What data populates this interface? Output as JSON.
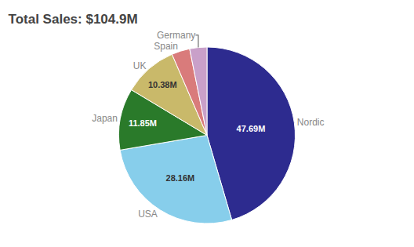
{
  "chart_data": {
    "type": "pie",
    "title": "Total Sales: $104.9M",
    "categories": [
      "Nordic",
      "USA",
      "Japan",
      "UK",
      "Spain",
      "Germany"
    ],
    "values": [
      47.69,
      28.16,
      11.85,
      10.38,
      3.5,
      3.31
    ],
    "value_labels": [
      "47.69M",
      "28.16M",
      "11.85M",
      "10.38M",
      null,
      null
    ],
    "colors": [
      "#2d2b8f",
      "#87ceeb",
      "#2a7a2a",
      "#c9b96a",
      "#d97b7b",
      "#c9a0c9"
    ]
  }
}
